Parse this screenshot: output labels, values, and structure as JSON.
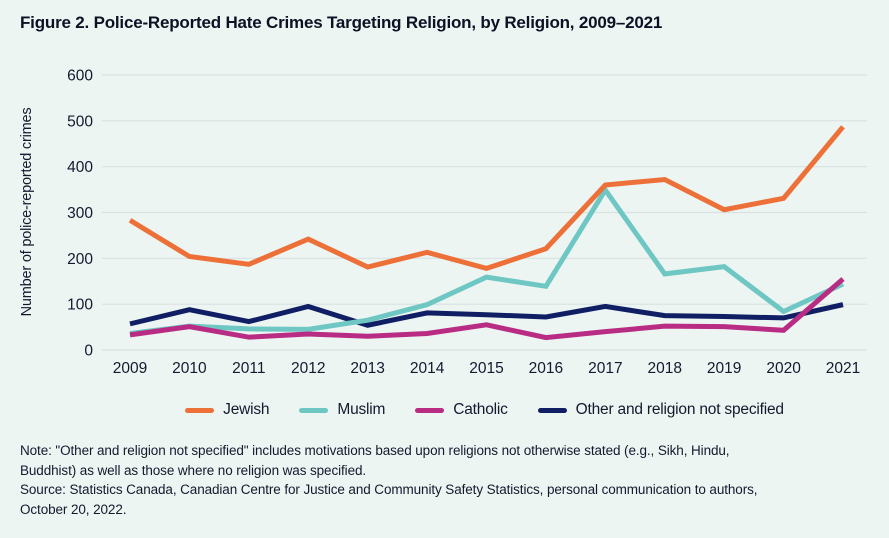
{
  "title": "Figure 2. Police-Reported Hate Crimes Targeting Religion, by Religion, 2009–2021",
  "colors": {
    "background": "#ECF5F2",
    "grid": "#D8E2E0",
    "text": "#15192E",
    "jewish": "#ED7038",
    "muslim": "#6FC7C3",
    "catholic": "#B92C84",
    "other": "#101F63"
  },
  "chart_data": {
    "type": "line",
    "title": "Figure 2. Police-Reported Hate Crimes Targeting Religion, by Religion, 2009–2021",
    "xlabel": "",
    "ylabel": "Number of police-reported crimes",
    "categories": [
      "2009",
      "2010",
      "2011",
      "2012",
      "2013",
      "2014",
      "2015",
      "2016",
      "2017",
      "2018",
      "2019",
      "2020",
      "2021"
    ],
    "y_ticks": [
      0,
      100,
      200,
      300,
      400,
      500,
      600
    ],
    "ylim": [
      0,
      600
    ],
    "grid": "horizontal",
    "legend_position": "bottom",
    "series": [
      {
        "key": "jewish",
        "name": "Jewish",
        "values": [
          283,
          204,
          187,
          242,
          181,
          213,
          178,
          221,
          360,
          372,
          306,
          331,
          487
        ]
      },
      {
        "key": "muslim",
        "name": "Muslim",
        "values": [
          36,
          52,
          46,
          45,
          65,
          99,
          159,
          139,
          349,
          166,
          182,
          84,
          144
        ]
      },
      {
        "key": "catholic",
        "name": "Catholic",
        "values": [
          33,
          51,
          28,
          35,
          30,
          36,
          55,
          27,
          40,
          52,
          51,
          43,
          155
        ]
      },
      {
        "key": "other",
        "name": "Other and religion not specified",
        "values": [
          57,
          88,
          62,
          95,
          54,
          81,
          77,
          72,
          95,
          75,
          73,
          70,
          99
        ]
      }
    ]
  },
  "notes": {
    "lines": [
      "Note: \"Other and religion not specified\" includes motivations based upon religions not otherwise stated (e.g., Sikh, Hindu,",
      "Buddhist) as well as those where no religion was specified.",
      "Source: Statistics Canada, Canadian Centre for Justice and Community Safety Statistics, personal communication to authors,",
      "October 20, 2022."
    ]
  }
}
